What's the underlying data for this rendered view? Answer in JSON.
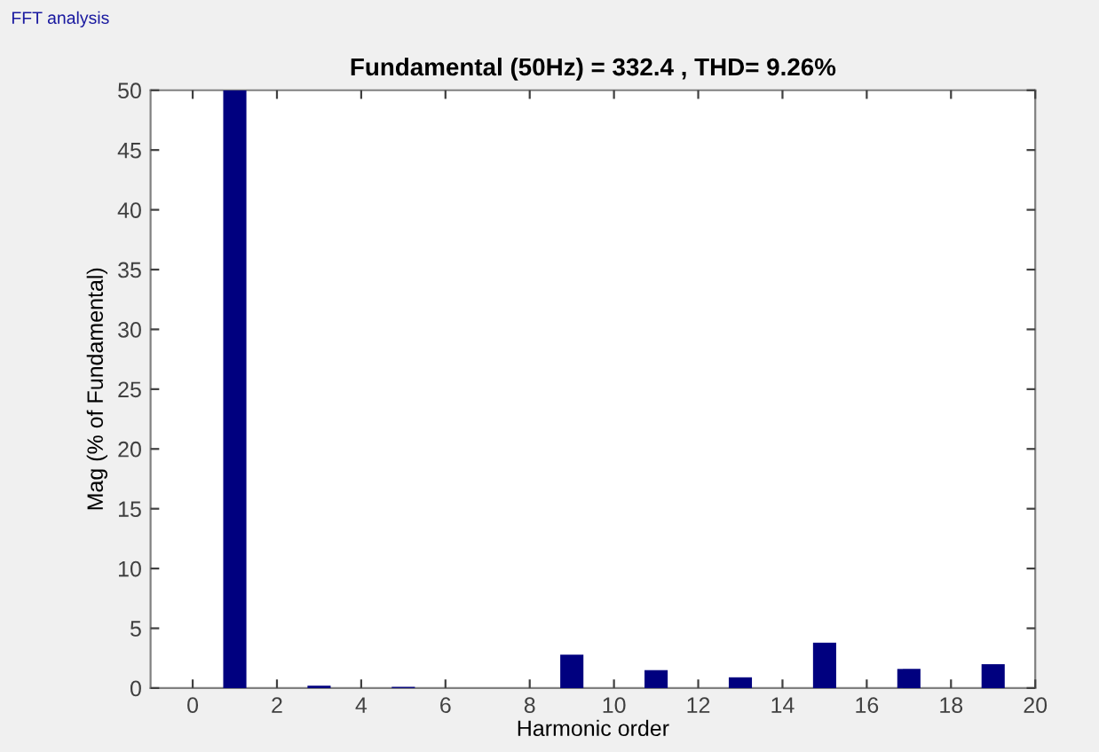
{
  "chart_data": {
    "type": "bar",
    "title": "Fundamental (50Hz) = 332.4 , THD= 9.26%",
    "xlabel": "Harmonic order",
    "ylabel": "Mag (% of Fundamental)",
    "annotations": [
      "FFT analysis"
    ],
    "x": [
      1,
      3,
      5,
      7,
      9,
      11,
      13,
      15,
      17,
      19
    ],
    "values": [
      50,
      0.2,
      0.1,
      null,
      2.8,
      1.5,
      0.9,
      3.8,
      1.6,
      2.0
    ],
    "color": "#00007f",
    "xlim": [
      -1,
      20
    ],
    "ylim": [
      0,
      50
    ],
    "xticks": [
      0,
      2,
      4,
      6,
      8,
      10,
      12,
      14,
      16,
      18,
      20
    ],
    "yticks": [
      0,
      5,
      10,
      15,
      20,
      25,
      30,
      35,
      40,
      45,
      50
    ],
    "grid": false
  }
}
